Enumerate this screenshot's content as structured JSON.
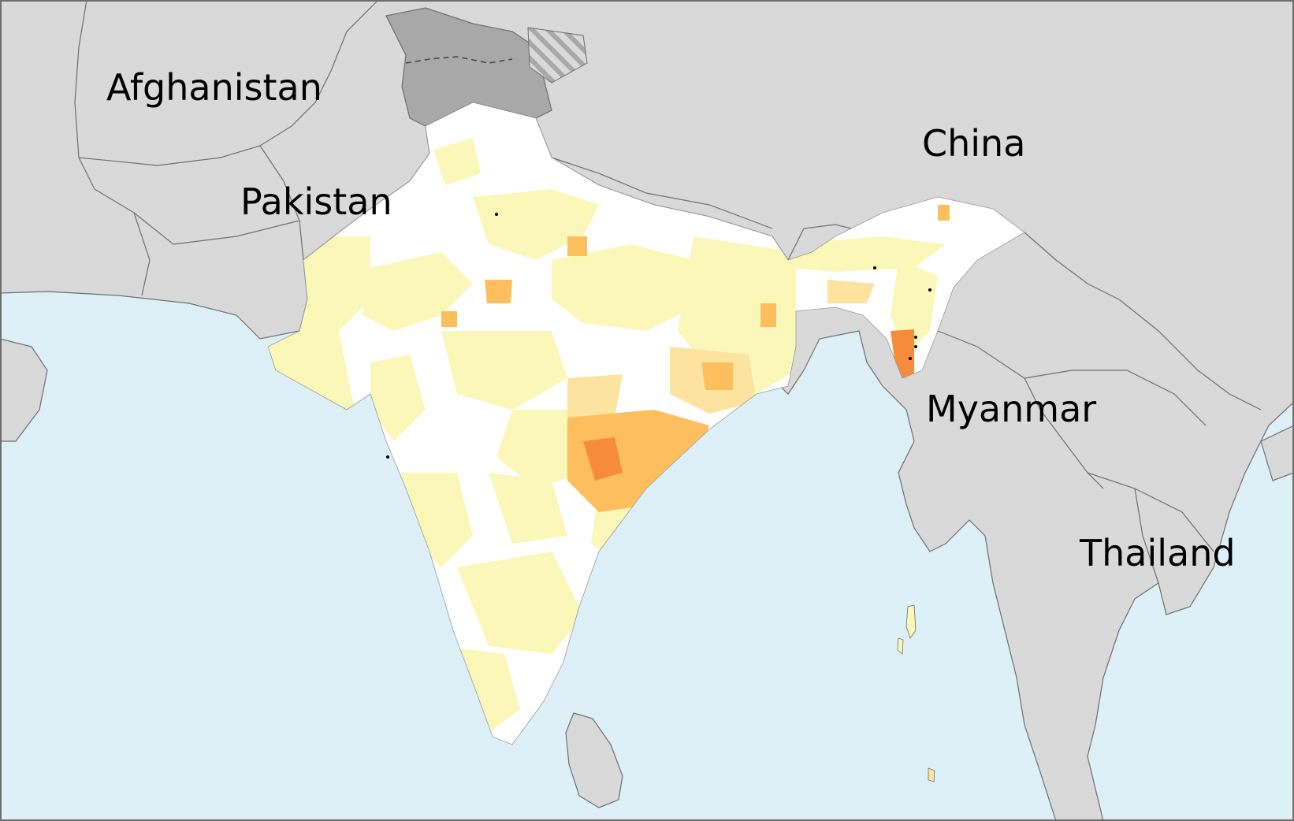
{
  "map": {
    "labels": {
      "afghanistan": "Afghanistan",
      "pakistan": "Pakistan",
      "china": "China",
      "myanmar": "Myanmar",
      "thailand": "Thailand"
    },
    "colors": {
      "sea": "#ddf0f8",
      "neighbor_land": "#d9d9d9",
      "disputed_land": "#a8a8a8",
      "border": "#6e6e6e",
      "district_none": "#ffffff",
      "district_low": "#fbf7b8",
      "district_medium": "#fde3a0",
      "district_high": "#fdbf5e",
      "district_highest": "#f78b3c"
    }
  }
}
